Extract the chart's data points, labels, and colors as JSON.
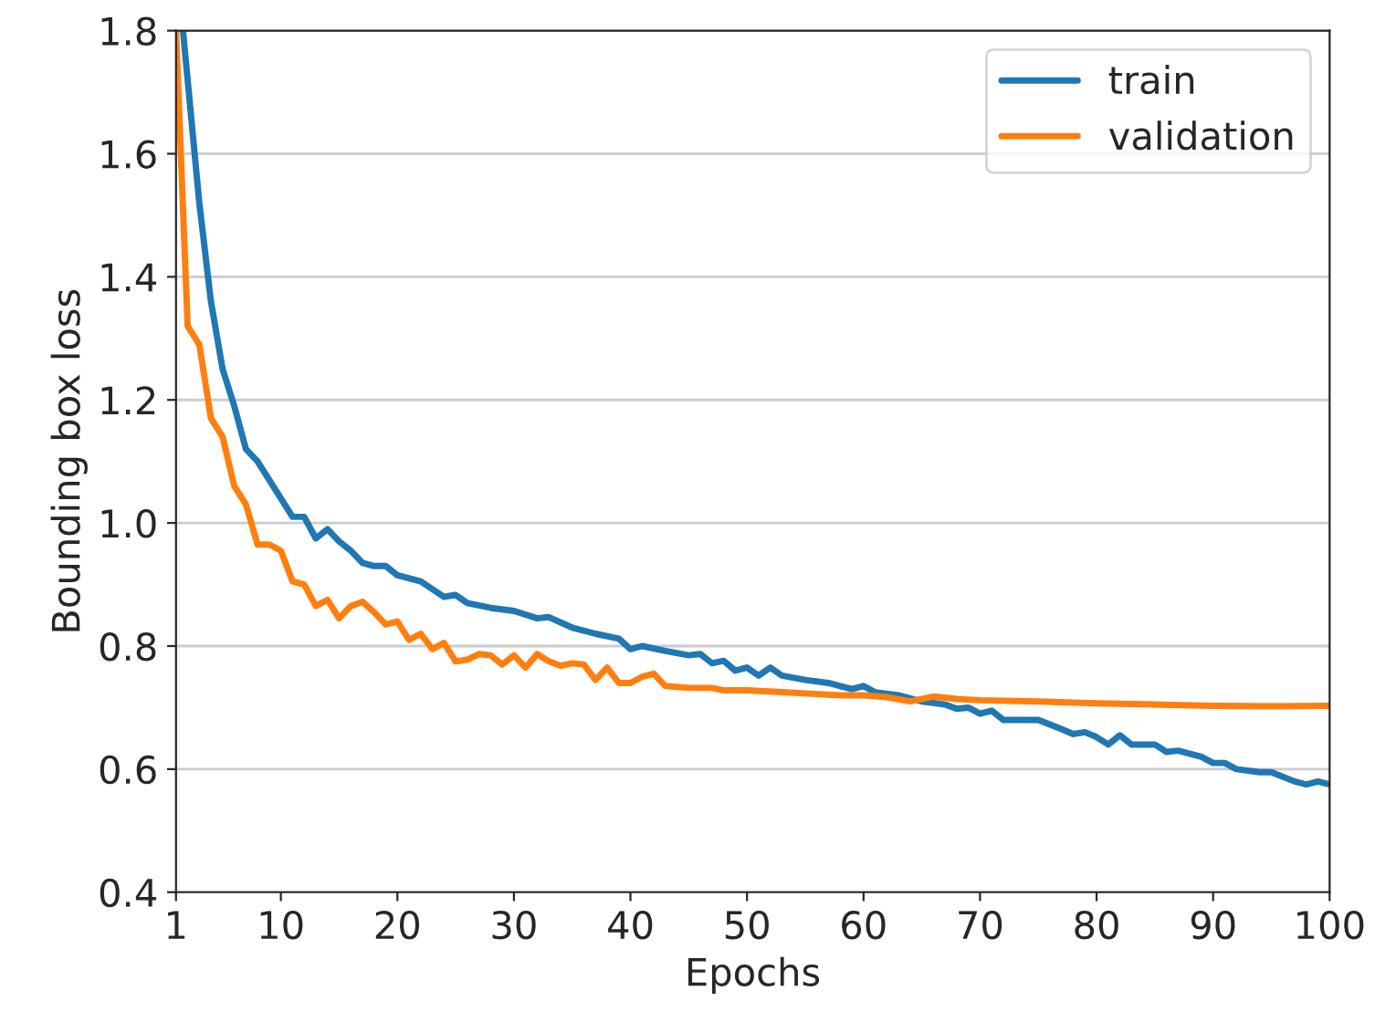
{
  "chart_data": {
    "type": "line",
    "xlabel": "Epochs",
    "ylabel": "Bounding box loss",
    "xlim": [
      1,
      100
    ],
    "xticks": [
      1,
      10,
      20,
      30,
      40,
      50,
      60,
      70,
      80,
      90,
      100
    ],
    "ylim": [
      0.4,
      1.8
    ],
    "yticks": [
      {
        "value": 0.4,
        "label": "0.4"
      },
      {
        "value": 0.6,
        "label": "0.6"
      },
      {
        "value": 0.8,
        "label": "0.8"
      },
      {
        "value": 1.0,
        "label": "1.0"
      },
      {
        "value": 1.2,
        "label": "1.2"
      },
      {
        "value": 1.4,
        "label": "1.4"
      },
      {
        "value": 1.6,
        "label": "1.6"
      },
      {
        "value": 1.8,
        "label": "1.8"
      }
    ],
    "grid": "y",
    "legend": "top right",
    "line_style": "solid",
    "marker": "none",
    "series": [
      {
        "name": "train",
        "color": "#1f77b4",
        "x": [
          1.6,
          2,
          3,
          4,
          5,
          6,
          7,
          8,
          9,
          10,
          11,
          12,
          13,
          14,
          15,
          16,
          17,
          18,
          19,
          20,
          22,
          24,
          25,
          26,
          28,
          30,
          32,
          33,
          35,
          37,
          39,
          40,
          41,
          43,
          45,
          46,
          47,
          48,
          49,
          50,
          51,
          52,
          53,
          55,
          57,
          58,
          59,
          60,
          61,
          63,
          65,
          67,
          68,
          69,
          70,
          71,
          72,
          75,
          77,
          78,
          79,
          80,
          81,
          82,
          83,
          85,
          86,
          87,
          89,
          90,
          91,
          92,
          94,
          95,
          97,
          98,
          99,
          100
        ],
        "values": [
          1.8,
          1.72,
          1.52,
          1.36,
          1.25,
          1.19,
          1.12,
          1.1,
          1.07,
          1.04,
          1.01,
          1.01,
          0.975,
          0.99,
          0.97,
          0.955,
          0.935,
          0.93,
          0.93,
          0.915,
          0.905,
          0.88,
          0.883,
          0.87,
          0.862,
          0.857,
          0.845,
          0.847,
          0.83,
          0.82,
          0.812,
          0.795,
          0.8,
          0.792,
          0.785,
          0.787,
          0.772,
          0.776,
          0.76,
          0.765,
          0.752,
          0.765,
          0.752,
          0.745,
          0.74,
          0.735,
          0.73,
          0.735,
          0.725,
          0.72,
          0.71,
          0.705,
          0.698,
          0.7,
          0.69,
          0.695,
          0.68,
          0.68,
          0.665,
          0.657,
          0.66,
          0.652,
          0.64,
          0.655,
          0.64,
          0.64,
          0.628,
          0.63,
          0.62,
          0.61,
          0.61,
          0.6,
          0.595,
          0.595,
          0.58,
          0.575,
          0.58,
          0.575
        ]
      },
      {
        "name": "validation",
        "color": "#ff7f0e",
        "x": [
          1,
          2,
          3,
          4,
          5,
          6,
          7,
          8,
          9,
          10,
          11,
          12,
          13,
          14,
          15,
          16,
          17,
          18,
          19,
          20,
          21,
          22,
          23,
          24,
          25,
          26,
          27,
          28,
          29,
          30,
          31,
          32,
          33,
          34,
          35,
          36,
          37,
          38,
          39,
          40,
          41,
          42,
          43,
          45,
          47,
          48,
          50,
          53,
          56,
          58,
          60,
          62,
          64,
          66,
          68,
          70,
          75,
          80,
          85,
          90,
          95,
          100
        ],
        "values": [
          1.8,
          1.32,
          1.29,
          1.17,
          1.14,
          1.06,
          1.03,
          0.965,
          0.965,
          0.955,
          0.905,
          0.9,
          0.865,
          0.875,
          0.845,
          0.865,
          0.872,
          0.855,
          0.835,
          0.84,
          0.81,
          0.82,
          0.795,
          0.805,
          0.775,
          0.778,
          0.787,
          0.785,
          0.77,
          0.785,
          0.765,
          0.787,
          0.775,
          0.768,
          0.772,
          0.77,
          0.745,
          0.765,
          0.74,
          0.74,
          0.75,
          0.755,
          0.735,
          0.732,
          0.732,
          0.728,
          0.728,
          0.725,
          0.722,
          0.72,
          0.72,
          0.717,
          0.71,
          0.718,
          0.714,
          0.712,
          0.71,
          0.707,
          0.705,
          0.703,
          0.702,
          0.703
        ]
      }
    ]
  }
}
